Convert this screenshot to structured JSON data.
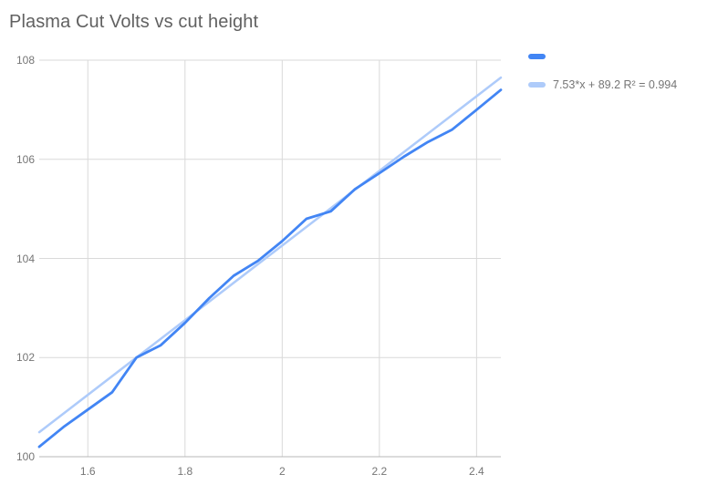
{
  "chart": {
    "container_label": "plasma-cut-chart"
  },
  "chart_data": {
    "type": "line",
    "title": "Plasma Cut Volts vs cut height",
    "xlabel": "",
    "ylabel": "",
    "xlim": [
      1.5,
      2.45
    ],
    "ylim": [
      100,
      108
    ],
    "grid": true,
    "legend_position": "top-right",
    "x_ticks": [
      {
        "value": 1.6,
        "label": "1.6"
      },
      {
        "value": 1.8,
        "label": "1.8"
      },
      {
        "value": 2.0,
        "label": "2"
      },
      {
        "value": 2.2,
        "label": "2.2"
      },
      {
        "value": 2.4,
        "label": "2.4"
      }
    ],
    "y_ticks": [
      {
        "value": 100,
        "label": "100"
      },
      {
        "value": 102,
        "label": "102"
      },
      {
        "value": 104,
        "label": "104"
      },
      {
        "value": 106,
        "label": "106"
      },
      {
        "value": 108,
        "label": "108"
      }
    ],
    "x": [
      1.5,
      1.55,
      1.6,
      1.65,
      1.7,
      1.75,
      1.8,
      1.85,
      1.9,
      1.95,
      2.0,
      2.05,
      2.1,
      2.15,
      2.2,
      2.25,
      2.3,
      2.35,
      2.4,
      2.45
    ],
    "series": [
      {
        "name": "",
        "kind": "data",
        "color": "#4285f4",
        "stroke_width": 2.8,
        "values": [
          100.2,
          100.6,
          100.95,
          101.3,
          102.0,
          102.25,
          102.7,
          103.2,
          103.65,
          103.95,
          104.35,
          104.8,
          104.95,
          105.4,
          105.72,
          106.05,
          106.35,
          106.6,
          107.0,
          107.4
        ]
      },
      {
        "name": "7.53*x + 89.2 R² = 0.994",
        "kind": "trendline",
        "color": "#aecbfa",
        "stroke_width": 2.5,
        "slope": 7.53,
        "intercept": 89.2,
        "r2": 0.994
      }
    ],
    "style": {
      "gridline_color": "#d9d9d9",
      "axis_line_color": "#b7b7b7",
      "title_color": "#616161",
      "tick_label_color": "#757575"
    }
  }
}
